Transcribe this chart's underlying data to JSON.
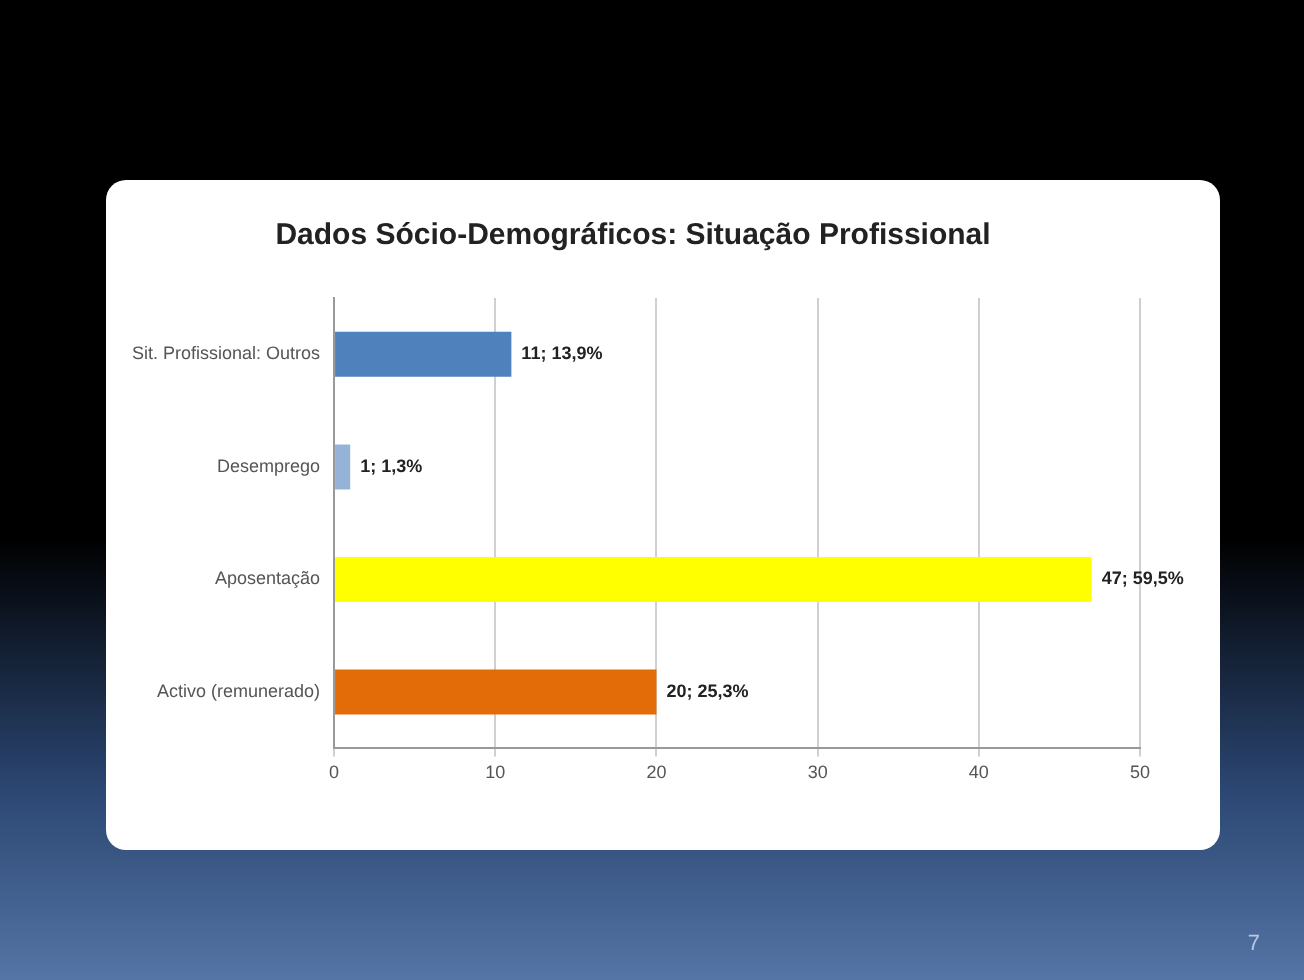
{
  "chart_data": {
    "type": "bar",
    "orientation": "horizontal",
    "title": "Dados Sócio-Demográficos: Situação Profissional",
    "categories": [
      "Sit. Profissional: Outros",
      "Desemprego",
      "Aposentação",
      "Activo (remunerado)"
    ],
    "values": [
      11,
      1,
      47,
      20
    ],
    "colors": [
      "#4f81bd",
      "#95b3d7",
      "#ffff00",
      "#e36c09"
    ],
    "value_labels": [
      "11; 13,9%",
      "1; 1,3%",
      "47; 59,5%",
      "20; 25,3%"
    ],
    "xlim": [
      0,
      50
    ],
    "xticks": [
      0,
      10,
      20,
      30,
      40,
      50
    ],
    "grid": "x",
    "legend": false,
    "annotations": [
      "7"
    ]
  }
}
